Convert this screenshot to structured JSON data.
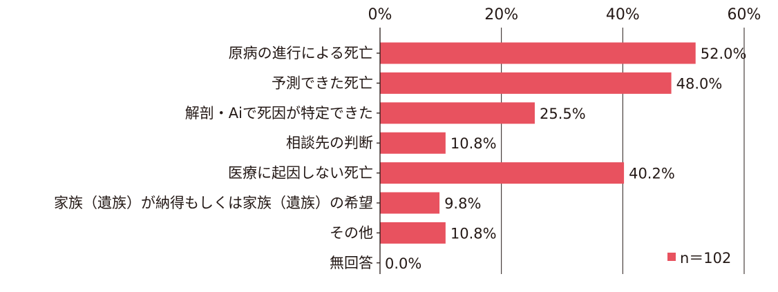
{
  "chart_data": {
    "type": "bar",
    "orientation": "horizontal",
    "categories": [
      "原病の進行による死亡",
      "予測できた死亡",
      "解剖・Aiで死因が特定できた",
      "相談先の判断",
      "医療に起因しない死亡",
      "家族（遺族）が納得もしくは家族（遺族）の希望",
      "その他",
      "無回答"
    ],
    "values": [
      52.0,
      48.0,
      25.5,
      10.8,
      40.2,
      9.8,
      10.8,
      0.0
    ],
    "value_labels": [
      "52.0%",
      "48.0%",
      "25.5%",
      "10.8%",
      "40.2%",
      "9.8%",
      "10.8%",
      "0.0%"
    ],
    "xlim": [
      0,
      60
    ],
    "xticks": [
      0,
      20,
      40,
      60
    ],
    "xtick_labels": [
      "0%",
      "20%",
      "40%",
      "60%"
    ],
    "x_axis_position": "top",
    "grid": true,
    "bar_color": "#e8525f",
    "legend": {
      "label": "n＝102",
      "placement": "bottom-right",
      "color": "#e8525f"
    }
  }
}
